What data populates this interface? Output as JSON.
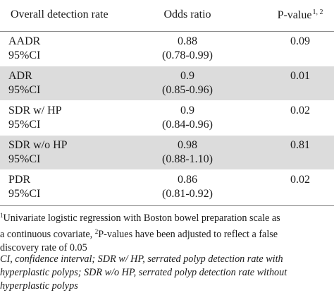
{
  "header": {
    "label": "Overall detection rate",
    "odds": "Odds ratio",
    "p": "P-value",
    "p_sup": "1, 2"
  },
  "rows": [
    {
      "name": "AADR",
      "ci_label": "95%CI",
      "or": "0.88",
      "ci": "(0.78-0.99)",
      "p": "0.09"
    },
    {
      "name": "ADR",
      "ci_label": "95%CI",
      "or": "0.9",
      "ci": "(0.85-0.96)",
      "p": "0.01"
    },
    {
      "name": "SDR w/ HP",
      "ci_label": "95%CI",
      "or": "0.9",
      "ci": "(0.84-0.96)",
      "p": "0.02"
    },
    {
      "name": "SDR w/o HP",
      "ci_label": "95%CI",
      "or": "0.98",
      "ci": "(0.88-1.10)",
      "p": "0.81"
    },
    {
      "name": "PDR",
      "ci_label": "95%CI",
      "or": "0.86",
      "ci": "(0.81-0.92)",
      "p": "0.02"
    }
  ],
  "footnote": {
    "sup1": "1",
    "line1_text": "Univariate logistic regression with Boston bowel preparation scale as",
    "line2_text": "a continuous covariate, ",
    "sup2": "2",
    "line2_rest": "P-values have been adjusted to reflect a false",
    "line3_text": "discovery rate of 0.05"
  },
  "abbreviations": {
    "line1": "CI, confidence interval; SDR w/ HP, serrated polyp detection rate with",
    "line2": "hyperplastic polyps; SDR w/o HP, serrated polyp detection rate without",
    "line3": "hyperplastic polyps"
  },
  "colors": {
    "shaded_row": "#dcdcdc",
    "text": "#1a1a1a"
  }
}
